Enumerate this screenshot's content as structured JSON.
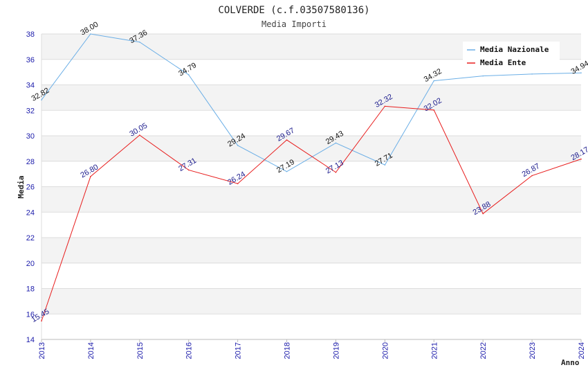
{
  "chart_data": {
    "type": "line",
    "title": "COLVERDE (c.f.03507580136)",
    "subtitle": "Media Importi",
    "xlabel": "Anno",
    "ylabel": "Media",
    "ylim": [
      14,
      38
    ],
    "yticks": [
      14,
      16,
      18,
      20,
      22,
      24,
      26,
      28,
      30,
      32,
      34,
      36,
      38
    ],
    "categories": [
      "2013",
      "2014",
      "2015",
      "2016",
      "2017",
      "2018",
      "2019",
      "2020",
      "2021",
      "2022",
      "2023",
      "2024"
    ],
    "grid": true,
    "legend_position": "top-right",
    "series": [
      {
        "name": "Media Nazionale",
        "color": "#6aaee6",
        "label_color": "#111111",
        "values": [
          32.82,
          38.0,
          37.36,
          34.79,
          29.24,
          27.19,
          29.43,
          27.71,
          34.32,
          34.7,
          34.85,
          34.94
        ],
        "labels": [
          "32.82",
          "38.00",
          "37.36",
          "34.79",
          "29.24",
          "27.19",
          "29.43",
          "27.71",
          "34.32",
          "",
          "",
          "34.94"
        ]
      },
      {
        "name": "Media Ente",
        "color": "#e81c1c",
        "label_color": "#1a1a8c",
        "values": [
          15.45,
          26.8,
          30.05,
          27.31,
          26.24,
          29.67,
          27.13,
          32.32,
          32.02,
          23.88,
          26.87,
          28.17
        ],
        "labels": [
          "15.45",
          "26.80",
          "30.05",
          "27.31",
          "26.24",
          "29.67",
          "27.13",
          "32.32",
          "32.02",
          "23.88",
          "26.87",
          "28.17"
        ]
      }
    ]
  }
}
